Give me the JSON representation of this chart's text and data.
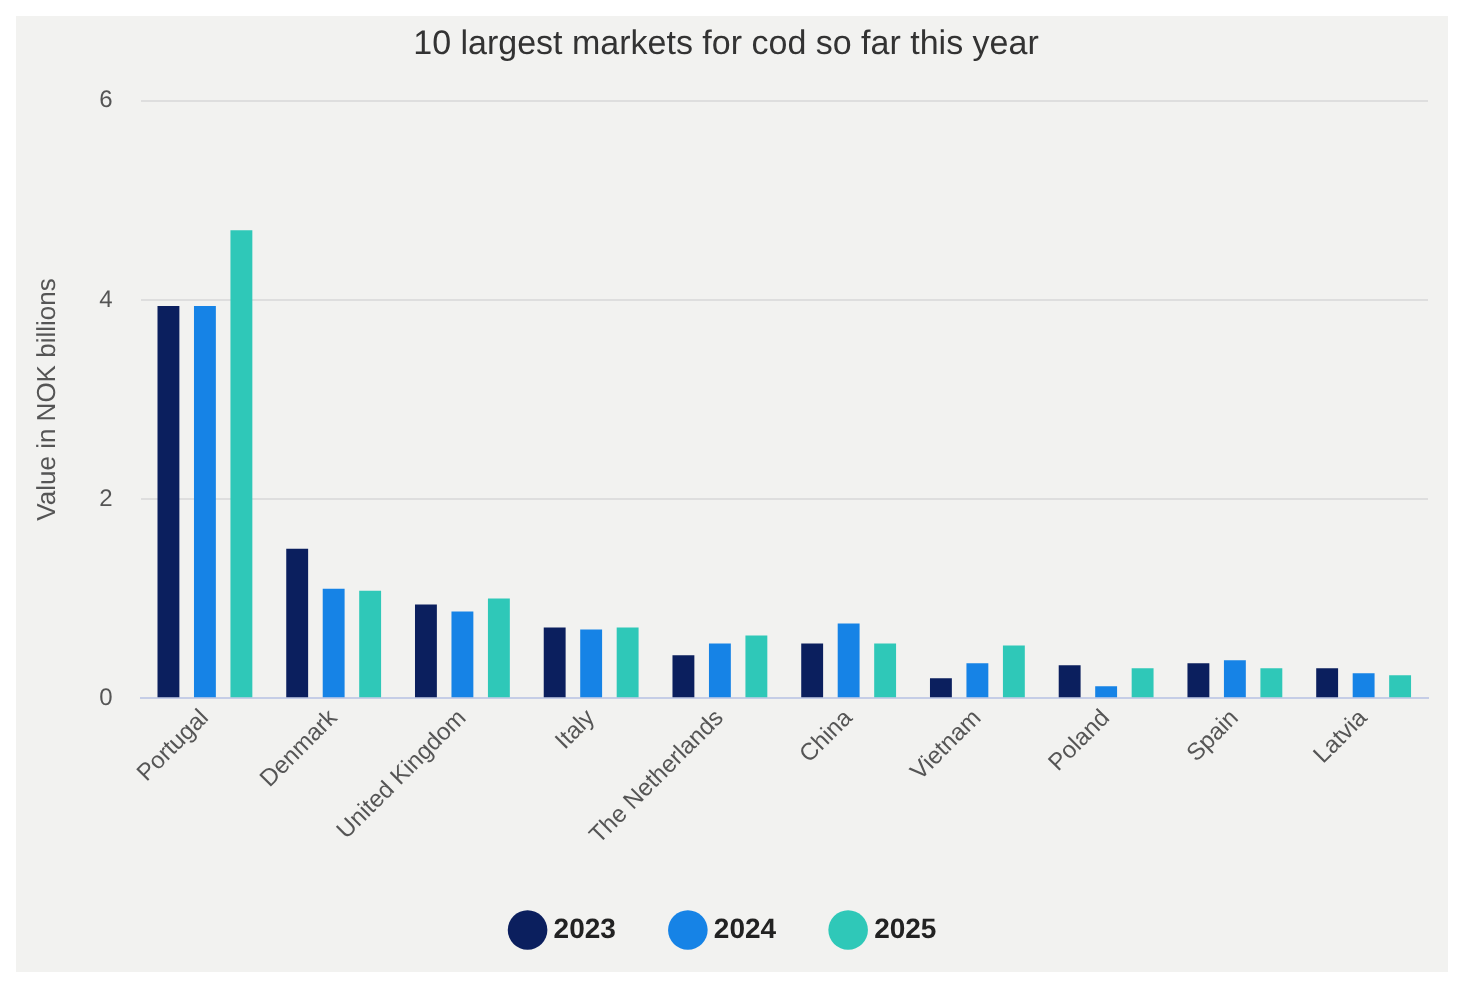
{
  "chart_data": {
    "type": "bar",
    "title": "10 largest markets for cod so far this year",
    "ylabel": "Value in NOK billions",
    "categories": [
      "Portugal",
      "Denmark",
      "United Kingdom",
      "Italy",
      "The Netherlands",
      "China",
      "Vietnam",
      "Poland",
      "Spain",
      "Latvia"
    ],
    "series": [
      {
        "name": "2023",
        "color": "#0b1f5e",
        "values": [
          3.94,
          1.5,
          0.94,
          0.71,
          0.43,
          0.55,
          0.2,
          0.33,
          0.35,
          0.3
        ]
      },
      {
        "name": "2024",
        "color": "#1683e6",
        "values": [
          3.94,
          1.1,
          0.87,
          0.69,
          0.55,
          0.75,
          0.35,
          0.12,
          0.38,
          0.25
        ]
      },
      {
        "name": "2025",
        "color": "#2fc8b8",
        "values": [
          4.7,
          1.08,
          1.0,
          0.71,
          0.63,
          0.55,
          0.53,
          0.3,
          0.3,
          0.23
        ]
      }
    ],
    "ylim": [
      0,
      6
    ],
    "yticks": [
      0,
      2,
      4,
      6
    ],
    "grid": "y",
    "legend": "bottom"
  }
}
